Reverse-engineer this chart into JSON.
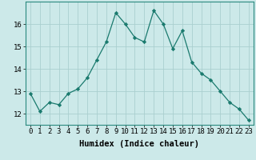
{
  "xlabel": "Humidex (Indice chaleur)",
  "x": [
    0,
    1,
    2,
    3,
    4,
    5,
    6,
    7,
    8,
    9,
    10,
    11,
    12,
    13,
    14,
    15,
    16,
    17,
    18,
    19,
    20,
    21,
    22,
    23
  ],
  "y": [
    12.9,
    12.1,
    12.5,
    12.4,
    12.9,
    13.1,
    13.6,
    14.4,
    15.2,
    16.5,
    16.0,
    15.4,
    15.2,
    16.6,
    16.0,
    14.9,
    15.7,
    14.3,
    13.8,
    13.5,
    13.0,
    12.5,
    12.2,
    11.7
  ],
  "line_color": "#1a7a6e",
  "marker": "D",
  "marker_size": 2.2,
  "bg_color": "#cce9e9",
  "grid_color": "#aacfcf",
  "ylim": [
    11.5,
    17.0
  ],
  "yticks": [
    12,
    13,
    14,
    15,
    16
  ],
  "xticks": [
    0,
    1,
    2,
    3,
    4,
    5,
    6,
    7,
    8,
    9,
    10,
    11,
    12,
    13,
    14,
    15,
    16,
    17,
    18,
    19,
    20,
    21,
    22,
    23
  ],
  "tick_fontsize": 6.5,
  "xlabel_fontsize": 7.5,
  "spine_color": "#2a8a7e"
}
